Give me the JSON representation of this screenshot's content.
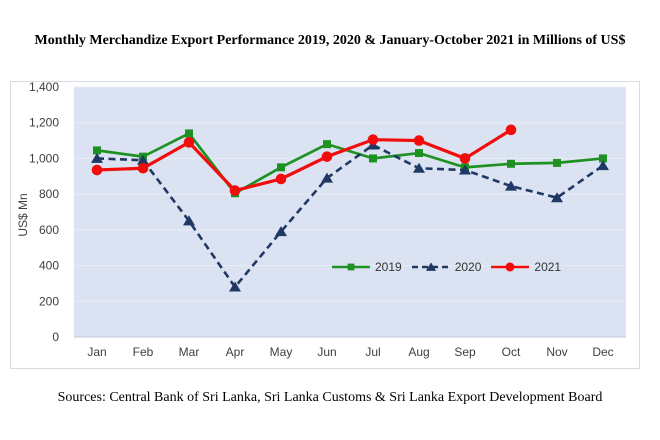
{
  "page": {
    "title": "Monthly Merchandize Export Performance 2019, 2020 & January-October 2021 in Millions of US$",
    "source_note": "Sources: Central Bank of Sri Lanka, Sri Lanka Customs & Sri Lanka Export Development Board"
  },
  "chart_data": {
    "type": "line",
    "title": "Monthly Merchandize Export Performance 2019, 2020 & January-October 2021 in Millions of US$",
    "ylabel": "US$ Mn",
    "xlabel": "",
    "categories": [
      "Jan",
      "Feb",
      "Mar",
      "Apr",
      "May",
      "Jun",
      "Jul",
      "Aug",
      "Sep",
      "Oct",
      "Nov",
      "Dec"
    ],
    "ylim": [
      0,
      1400
    ],
    "yticks": [
      [
        0,
        "0"
      ],
      [
        200,
        "200"
      ],
      [
        400,
        "400"
      ],
      [
        600,
        "600"
      ],
      [
        800,
        "800"
      ],
      [
        1000,
        "1,000"
      ],
      [
        1200,
        "1,200"
      ],
      [
        1400,
        "1,400"
      ]
    ],
    "grid": true,
    "legend_position": "inside-bottom-center",
    "plot_bg": "#dbe3f2",
    "gridline_color": "#e7ecf6",
    "axis_line_color": "#c6ccd8",
    "axis_text_color": "#3f3f3f",
    "series": [
      {
        "name": "2019",
        "color": "#1e9123",
        "marker": "square",
        "line_style": "solid",
        "line_width": 2.7,
        "values": [
          1045,
          1010,
          1140,
          805,
          950,
          1080,
          1000,
          1030,
          950,
          970,
          975,
          1000
        ]
      },
      {
        "name": "2020",
        "color": "#1f3864",
        "marker": "triangle",
        "line_style": "dashed",
        "line_width": 2.6,
        "values": [
          1000,
          990,
          650,
          280,
          590,
          890,
          1075,
          945,
          935,
          845,
          780,
          960
        ]
      },
      {
        "name": "2021",
        "color": "#f20d0d",
        "marker": "circle",
        "line_style": "solid",
        "line_width": 3.2,
        "values": [
          935,
          945,
          1090,
          820,
          885,
          1010,
          1105,
          1100,
          1000,
          1160,
          null,
          null
        ]
      }
    ]
  }
}
